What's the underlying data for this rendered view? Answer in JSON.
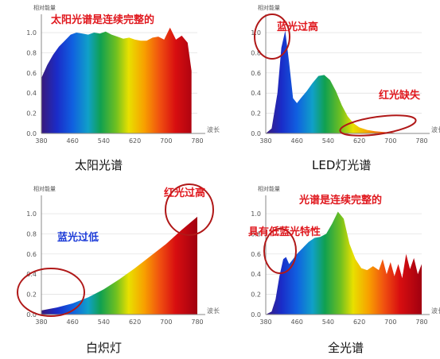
{
  "chart_data": [
    {
      "type": "area",
      "title": "太阳光谱是连续完整的",
      "caption": "太阳光谱",
      "ylabel": "相对能量",
      "xlabel": "波长",
      "xticks": [
        380,
        460,
        540,
        620,
        700,
        780
      ],
      "yticks": [
        "0.0",
        "0.2",
        "0.4",
        "0.6",
        "0.8",
        "1.0"
      ],
      "ylim": [
        0,
        1.15
      ],
      "xlim": [
        380,
        780
      ],
      "x": [
        380,
        395,
        410,
        425,
        440,
        455,
        470,
        485,
        500,
        515,
        530,
        545,
        560,
        575,
        590,
        605,
        620,
        635,
        650,
        665,
        680,
        695,
        710,
        725,
        740,
        755,
        765
      ],
      "values": [
        0.55,
        0.68,
        0.78,
        0.86,
        0.92,
        0.98,
        1.0,
        0.99,
        0.98,
        1.0,
        0.99,
        1.01,
        0.98,
        0.96,
        0.94,
        0.95,
        0.93,
        0.92,
        0.92,
        0.95,
        0.96,
        0.93,
        1.05,
        0.93,
        0.97,
        0.9,
        0.62
      ],
      "annotations": []
    },
    {
      "type": "area",
      "title": "",
      "caption": "LED灯光谱",
      "ylabel": "相对能量",
      "xlabel": "波长",
      "xticks": [
        380,
        460,
        540,
        620,
        700,
        780
      ],
      "yticks": [
        "0.0",
        "0.2",
        "0.4",
        "0.6",
        "0.8",
        "1.0"
      ],
      "ylim": [
        0,
        1.15
      ],
      "xlim": [
        380,
        780
      ],
      "x": [
        380,
        395,
        410,
        420,
        430,
        440,
        450,
        460,
        470,
        485,
        500,
        515,
        530,
        545,
        560,
        575,
        590,
        605,
        620,
        640,
        660,
        680,
        700,
        720
      ],
      "values": [
        0.0,
        0.05,
        0.4,
        0.85,
        1.02,
        0.7,
        0.35,
        0.3,
        0.35,
        0.42,
        0.5,
        0.57,
        0.58,
        0.53,
        0.42,
        0.28,
        0.17,
        0.1,
        0.06,
        0.035,
        0.022,
        0.015,
        0.01,
        0.0
      ],
      "annotations": [
        {
          "text": "蓝光过高",
          "color": "#e0181e"
        },
        {
          "text": "红光缺失",
          "color": "#e0181e"
        }
      ]
    },
    {
      "type": "area",
      "title": "",
      "caption": "白炽灯",
      "ylabel": "相对能量",
      "xlabel": "波长",
      "xticks": [
        380,
        460,
        540,
        620,
        700,
        780
      ],
      "yticks": [
        "0.0",
        "0.2",
        "0.4",
        "0.6",
        "0.8",
        "1.0"
      ],
      "ylim": [
        0,
        1.15
      ],
      "xlim": [
        380,
        780
      ],
      "x": [
        380,
        420,
        460,
        500,
        540,
        580,
        620,
        660,
        700,
        740,
        780
      ],
      "values": [
        0.04,
        0.07,
        0.11,
        0.17,
        0.25,
        0.35,
        0.46,
        0.58,
        0.7,
        0.84,
        0.97
      ],
      "annotations": [
        {
          "text": "红光过高",
          "color": "#e0181e"
        },
        {
          "text": "蓝光过低",
          "color": "#1c3bd8"
        }
      ]
    },
    {
      "type": "area",
      "title": "光谱是连续完整的",
      "caption": "全光谱",
      "ylabel": "相对能量",
      "xlabel": "波长",
      "xticks": [
        380,
        460,
        540,
        620,
        700,
        780
      ],
      "yticks": [
        "0.0",
        "0.2",
        "0.4",
        "0.6",
        "0.8",
        "1.0"
      ],
      "ylim": [
        0,
        1.15
      ],
      "xlim": [
        380,
        780
      ],
      "x": [
        380,
        395,
        405,
        415,
        425,
        432,
        440,
        450,
        460,
        475,
        490,
        505,
        520,
        535,
        550,
        565,
        580,
        595,
        610,
        625,
        640,
        655,
        670,
        680,
        690,
        700,
        710,
        720,
        730,
        740,
        750,
        760,
        770,
        780
      ],
      "values": [
        0.0,
        0.03,
        0.15,
        0.38,
        0.55,
        0.57,
        0.5,
        0.55,
        0.6,
        0.66,
        0.72,
        0.76,
        0.77,
        0.8,
        0.9,
        1.02,
        0.95,
        0.7,
        0.55,
        0.46,
        0.44,
        0.48,
        0.44,
        0.55,
        0.4,
        0.52,
        0.38,
        0.5,
        0.36,
        0.6,
        0.45,
        0.56,
        0.4,
        0.5
      ],
      "annotations": [
        {
          "text": "具有低蓝光特性",
          "color": "#e0181e"
        }
      ]
    }
  ]
}
